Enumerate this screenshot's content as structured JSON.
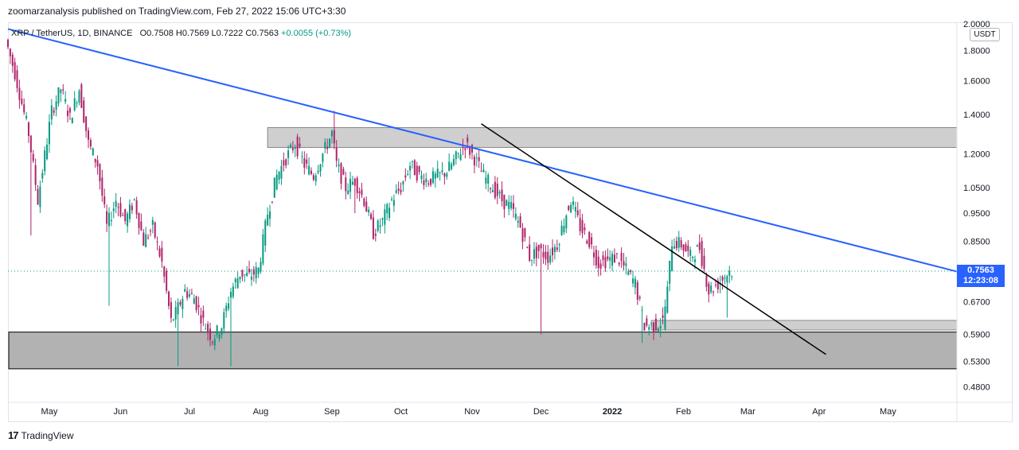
{
  "publisher_line": "zoomarzanalysis published on TradingView.com, Feb 27, 2022 15:06 UTC+3:30",
  "footer": {
    "logo_glyph": "17",
    "brand": "TradingView"
  },
  "currency_label": "USDT",
  "colors": {
    "up": "#089981",
    "down": "#b0246a",
    "trendline_blue": "#2962ff",
    "trendline_black": "#000000",
    "zone": "#b0b0b0"
  },
  "chart_data": {
    "type": "candlestick",
    "symbol": "XRP / TetherUS, 1D, BINANCE",
    "ohlc_labels": {
      "open": "O0.7508",
      "high": "H0.7569",
      "low": "L0.7222",
      "close": "C0.7563",
      "change": "+0.0055 (+0.73%)"
    },
    "last_price": "0.7563",
    "countdown": "12:23:08",
    "y_ticks": [
      "2.0000",
      "1.8000",
      "1.6000",
      "1.4000",
      "1.2000",
      "1.0500",
      "0.9500",
      "0.8500",
      "0.7563",
      "0.6700",
      "0.5900",
      "0.5300",
      "0.4800"
    ],
    "y_tick_values": [
      2.0,
      1.8,
      1.6,
      1.4,
      1.2,
      1.05,
      0.95,
      0.85,
      0.7563,
      0.67,
      0.59,
      0.53,
      0.48
    ],
    "x_ticks": [
      "May",
      "Jun",
      "Jul",
      "Aug",
      "Sep",
      "Oct",
      "Nov",
      "Dec",
      "2022",
      "Feb",
      "Mar",
      "Apr",
      "May"
    ],
    "x_tick_days": [
      0,
      31,
      61,
      92,
      123,
      153,
      184,
      214,
      245,
      276,
      304,
      335,
      365
    ],
    "scale": "log",
    "y_range": [
      0.46,
      2.0
    ],
    "x_range_days": [
      -18,
      395
    ],
    "last_day": 297,
    "anchors": [
      [
        -18,
        1.88
      ],
      [
        -14,
        1.65
      ],
      [
        -8,
        1.3
      ],
      [
        -4,
        1.0
      ],
      [
        2,
        1.42
      ],
      [
        6,
        1.55
      ],
      [
        10,
        1.38
      ],
      [
        14,
        1.55
      ],
      [
        18,
        1.25
      ],
      [
        22,
        1.15
      ],
      [
        26,
        0.9
      ],
      [
        30,
        1.0
      ],
      [
        34,
        0.92
      ],
      [
        38,
        1.0
      ],
      [
        42,
        0.85
      ],
      [
        46,
        0.9
      ],
      [
        50,
        0.78
      ],
      [
        54,
        0.62
      ],
      [
        56,
        0.64
      ],
      [
        60,
        0.7
      ],
      [
        64,
        0.68
      ],
      [
        68,
        0.62
      ],
      [
        72,
        0.58
      ],
      [
        76,
        0.61
      ],
      [
        80,
        0.7
      ],
      [
        84,
        0.75
      ],
      [
        88,
        0.74
      ],
      [
        92,
        0.76
      ],
      [
        96,
        0.95
      ],
      [
        100,
        1.1
      ],
      [
        104,
        1.18
      ],
      [
        108,
        1.25
      ],
      [
        112,
        1.15
      ],
      [
        116,
        1.1
      ],
      [
        120,
        1.2
      ],
      [
        124,
        1.3
      ],
      [
        126,
        1.15
      ],
      [
        130,
        1.05
      ],
      [
        134,
        1.08
      ],
      [
        138,
        1.0
      ],
      [
        142,
        0.88
      ],
      [
        146,
        0.92
      ],
      [
        150,
        1.0
      ],
      [
        154,
        1.05
      ],
      [
        158,
        1.15
      ],
      [
        162,
        1.1
      ],
      [
        166,
        1.08
      ],
      [
        170,
        1.1
      ],
      [
        174,
        1.12
      ],
      [
        178,
        1.18
      ],
      [
        182,
        1.25
      ],
      [
        186,
        1.18
      ],
      [
        190,
        1.1
      ],
      [
        194,
        1.05
      ],
      [
        198,
        1.0
      ],
      [
        202,
        0.97
      ],
      [
        206,
        0.9
      ],
      [
        210,
        0.8
      ],
      [
        214,
        0.82
      ],
      [
        218,
        0.8
      ],
      [
        222,
        0.84
      ],
      [
        226,
        0.95
      ],
      [
        228,
        1.0
      ],
      [
        232,
        0.9
      ],
      [
        236,
        0.85
      ],
      [
        240,
        0.78
      ],
      [
        244,
        0.79
      ],
      [
        248,
        0.8
      ],
      [
        252,
        0.76
      ],
      [
        256,
        0.72
      ],
      [
        260,
        0.61
      ],
      [
        264,
        0.61
      ],
      [
        268,
        0.62
      ],
      [
        270,
        0.7
      ],
      [
        272,
        0.85
      ],
      [
        276,
        0.84
      ],
      [
        280,
        0.8
      ],
      [
        284,
        0.83
      ],
      [
        288,
        0.7
      ],
      [
        292,
        0.72
      ],
      [
        297,
        0.7563
      ]
    ],
    "spikes": [
      [
        -8,
        "low",
        0.87
      ],
      [
        26,
        "low",
        0.66
      ],
      [
        56,
        "low",
        0.52
      ],
      [
        79,
        "low",
        0.52
      ],
      [
        124,
        "high",
        1.42
      ],
      [
        133,
        "low",
        0.95
      ],
      [
        214,
        "low",
        0.59
      ],
      [
        258,
        "low",
        0.57
      ],
      [
        295,
        "low",
        0.63
      ]
    ],
    "zones": [
      {
        "day_start": 95,
        "day_end": 395,
        "top": 1.33,
        "bottom": 1.23
      },
      {
        "day_start": -18,
        "day_end": 395,
        "top": 0.595,
        "bottom": 0.515
      },
      {
        "day_start": 262,
        "day_end": 395,
        "top": 0.623,
        "bottom": 0.6
      }
    ],
    "trendlines": [
      {
        "name": "descending-blue",
        "from": [
          -18,
          1.96
        ],
        "to": [
          395,
          0.755
        ]
      },
      {
        "name": "descending-black",
        "from": [
          188,
          1.35
        ],
        "to": [
          338,
          0.545
        ]
      }
    ]
  }
}
